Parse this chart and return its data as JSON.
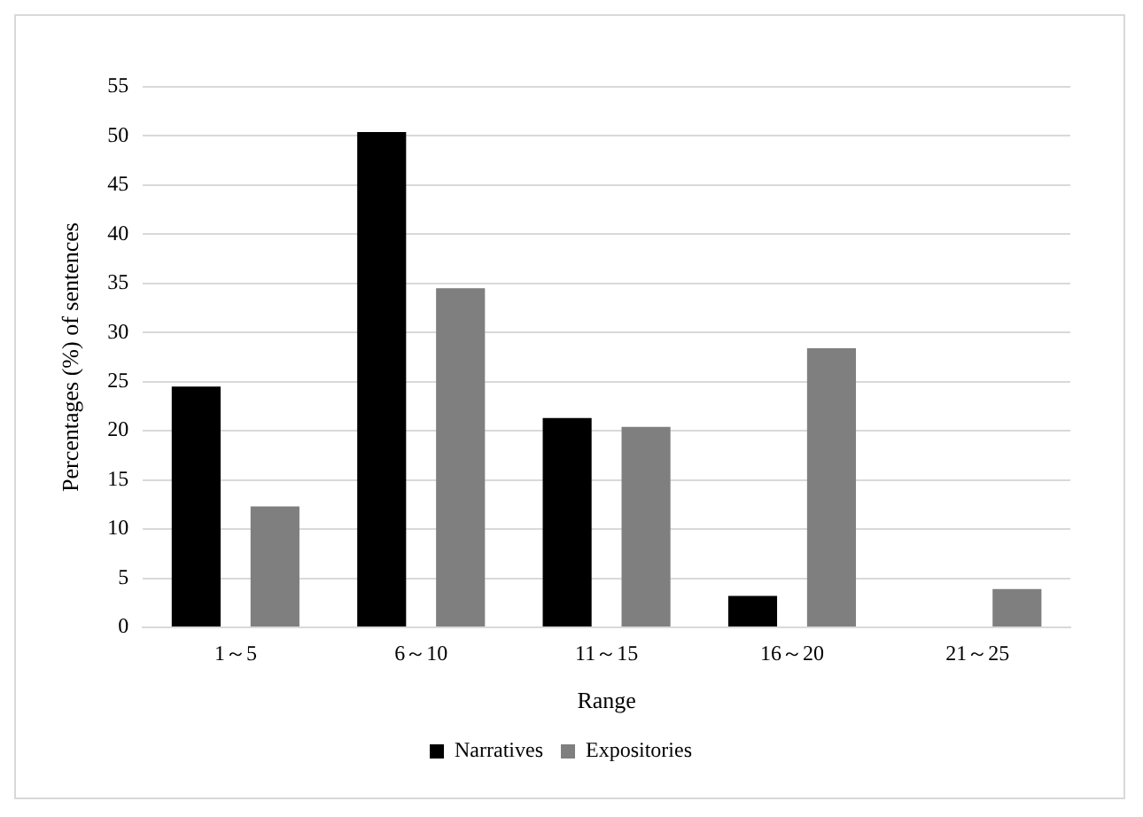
{
  "chart_data": {
    "type": "bar",
    "xlabel": "Range",
    "ylabel": "Percentages (%) of sentences",
    "categories": [
      "1～5",
      "6～10",
      "11～15",
      "16～20",
      "21～25"
    ],
    "series": [
      {
        "name": "Narratives",
        "color": "#000000",
        "values": [
          24.5,
          50.4,
          21.3,
          3.2,
          0
        ]
      },
      {
        "name": "Expositories",
        "color": "#7f7f7f",
        "values": [
          12.3,
          34.5,
          20.4,
          28.4,
          3.9
        ]
      }
    ],
    "ylim": [
      0,
      55
    ],
    "yticks": [
      0,
      5,
      10,
      15,
      20,
      25,
      30,
      35,
      40,
      45,
      50,
      55
    ],
    "grid": "y",
    "legend": "bottom"
  }
}
